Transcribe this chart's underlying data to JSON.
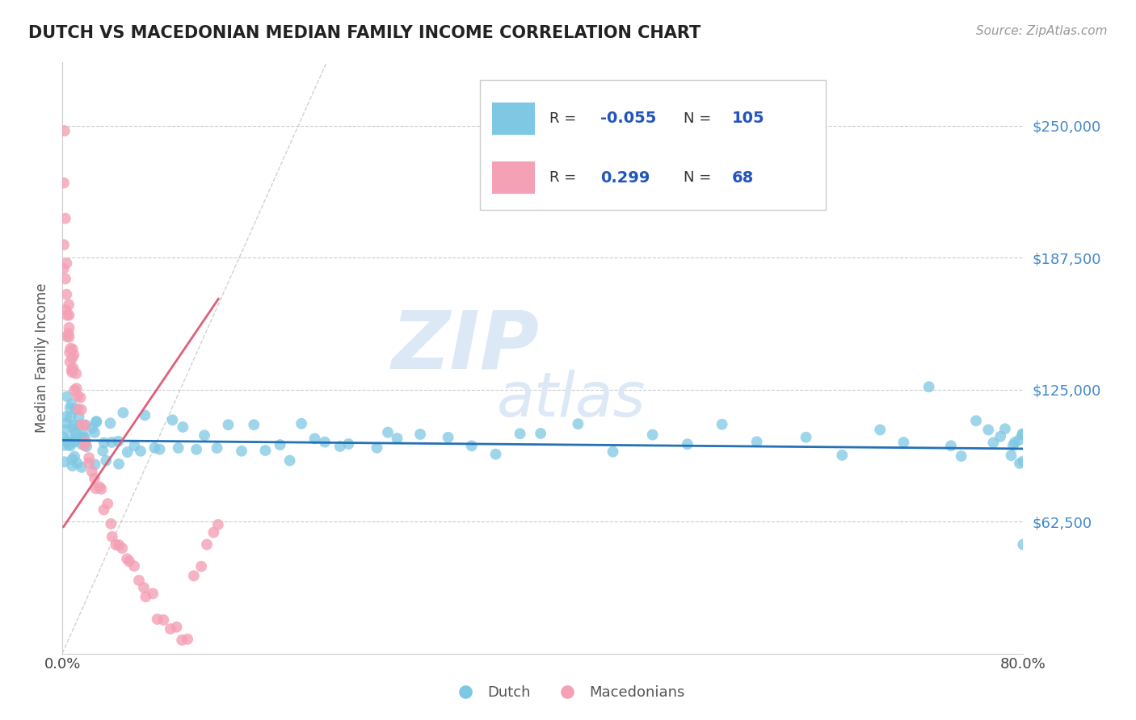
{
  "title": "DUTCH VS MACEDONIAN MEDIAN FAMILY INCOME CORRELATION CHART",
  "source": "Source: ZipAtlas.com",
  "ylabel": "Median Family Income",
  "yticks": [
    0,
    62500,
    125000,
    187500,
    250000
  ],
  "ytick_labels": [
    "",
    "$62,500",
    "$125,000",
    "$187,500",
    "$250,000"
  ],
  "xlim": [
    0.0,
    0.8
  ],
  "ylim": [
    0,
    280000
  ],
  "legend_dutch_R": "-0.055",
  "legend_dutch_N": "105",
  "legend_mac_R": "0.299",
  "legend_mac_N": "68",
  "dutch_color": "#7ec8e3",
  "mac_color": "#f4a0b5",
  "dutch_line_color": "#2471b5",
  "mac_line_color": "#e0607a",
  "watermark_color": "#dce8f5",
  "dutch_scatter_x": [
    0.001,
    0.002,
    0.002,
    0.003,
    0.003,
    0.004,
    0.004,
    0.005,
    0.005,
    0.006,
    0.006,
    0.007,
    0.007,
    0.008,
    0.008,
    0.009,
    0.009,
    0.01,
    0.01,
    0.011,
    0.011,
    0.012,
    0.012,
    0.013,
    0.014,
    0.015,
    0.015,
    0.016,
    0.017,
    0.018,
    0.019,
    0.02,
    0.022,
    0.023,
    0.025,
    0.027,
    0.028,
    0.03,
    0.033,
    0.035,
    0.038,
    0.04,
    0.043,
    0.045,
    0.048,
    0.05,
    0.055,
    0.06,
    0.065,
    0.07,
    0.075,
    0.08,
    0.09,
    0.095,
    0.1,
    0.11,
    0.12,
    0.13,
    0.14,
    0.15,
    0.16,
    0.17,
    0.18,
    0.19,
    0.2,
    0.21,
    0.22,
    0.23,
    0.24,
    0.26,
    0.27,
    0.28,
    0.3,
    0.32,
    0.34,
    0.36,
    0.38,
    0.4,
    0.43,
    0.46,
    0.49,
    0.52,
    0.55,
    0.58,
    0.62,
    0.65,
    0.68,
    0.7,
    0.72,
    0.74,
    0.75,
    0.76,
    0.77,
    0.775,
    0.78,
    0.785,
    0.79,
    0.792,
    0.795,
    0.798,
    0.799,
    0.799,
    0.8,
    0.8,
    0.8
  ],
  "dutch_scatter_y": [
    105000,
    110000,
    98000,
    115000,
    95000,
    108000,
    102000,
    112000,
    96000,
    100000,
    118000,
    105000,
    92000,
    108000,
    98000,
    115000,
    88000,
    102000,
    110000,
    96000,
    105000,
    98000,
    112000,
    95000,
    108000,
    100000,
    115000,
    92000,
    105000,
    98000,
    110000,
    102000,
    96000,
    108000,
    100000,
    105000,
    92000,
    110000,
    98000,
    102000,
    96000,
    108000,
    100000,
    105000,
    92000,
    110000,
    98000,
    102000,
    96000,
    108000,
    100000,
    95000,
    108000,
    100000,
    105000,
    98000,
    102000,
    96000,
    108000,
    100000,
    105000,
    98000,
    102000,
    96000,
    108000,
    100000,
    105000,
    98000,
    102000,
    96000,
    108000,
    100000,
    105000,
    98000,
    102000,
    96000,
    108000,
    100000,
    105000,
    98000,
    102000,
    96000,
    108000,
    100000,
    105000,
    98000,
    102000,
    96000,
    125000,
    100000,
    95000,
    108000,
    102000,
    96000,
    100000,
    105000,
    98000,
    102000,
    96000,
    100000,
    95000,
    108000,
    102000,
    96000,
    55000
  ],
  "mac_scatter_x": [
    0.001,
    0.001,
    0.002,
    0.002,
    0.002,
    0.003,
    0.003,
    0.003,
    0.004,
    0.004,
    0.004,
    0.005,
    0.005,
    0.005,
    0.006,
    0.006,
    0.006,
    0.007,
    0.007,
    0.008,
    0.008,
    0.009,
    0.009,
    0.01,
    0.01,
    0.011,
    0.011,
    0.012,
    0.013,
    0.014,
    0.015,
    0.016,
    0.017,
    0.018,
    0.019,
    0.02,
    0.022,
    0.023,
    0.025,
    0.027,
    0.028,
    0.03,
    0.032,
    0.035,
    0.037,
    0.04,
    0.042,
    0.045,
    0.048,
    0.05,
    0.053,
    0.056,
    0.06,
    0.063,
    0.067,
    0.07,
    0.075,
    0.08,
    0.085,
    0.09,
    0.095,
    0.1,
    0.105,
    0.11,
    0.115,
    0.12,
    0.125,
    0.13
  ],
  "mac_scatter_y": [
    248000,
    220000,
    205000,
    195000,
    182000,
    188000,
    175000,
    165000,
    170000,
    160000,
    152000,
    162000,
    155000,
    148000,
    158000,
    150000,
    142000,
    148000,
    140000,
    145000,
    138000,
    142000,
    135000,
    138000,
    132000,
    135000,
    128000,
    125000,
    120000,
    115000,
    118000,
    112000,
    108000,
    105000,
    100000,
    98000,
    95000,
    92000,
    88000,
    85000,
    82000,
    78000,
    75000,
    70000,
    68000,
    62000,
    58000,
    55000,
    52000,
    48000,
    45000,
    42000,
    38000,
    35000,
    32000,
    28000,
    25000,
    20000,
    18000,
    15000,
    12000,
    8000,
    5000,
    40000,
    45000,
    50000,
    55000,
    62000
  ],
  "dutch_trend_x": [
    0.0,
    0.8
  ],
  "dutch_trend_y": [
    101000,
    97000
  ],
  "mac_trend_x": [
    0.001,
    0.13
  ],
  "mac_trend_y": [
    60000,
    168000
  ]
}
